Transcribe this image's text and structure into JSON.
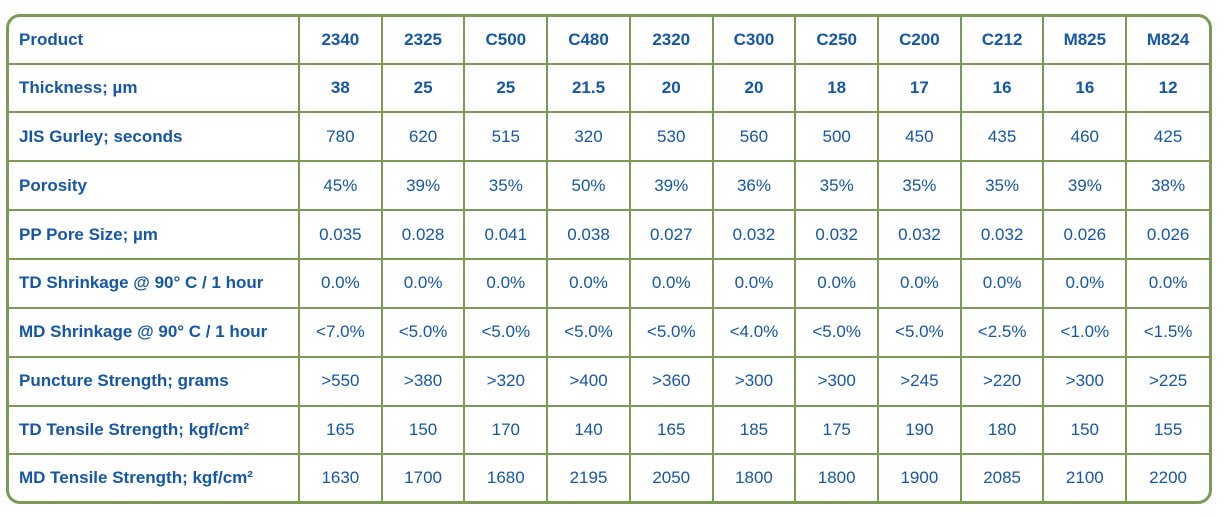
{
  "table": {
    "header": {
      "label": "Product",
      "values": [
        "2340",
        "2325",
        "C500",
        "C480",
        "2320",
        "C300",
        "C250",
        "C200",
        "C212",
        "M825",
        "M824"
      ]
    },
    "rows": [
      {
        "label": "Thickness;  µm",
        "values": [
          "38",
          "25",
          "25",
          "21.5",
          "20",
          "20",
          "18",
          "17",
          "16",
          "16",
          "12"
        ]
      },
      {
        "label": "JIS Gurley;  seconds",
        "values": [
          "780",
          "620",
          "515",
          "320",
          "530",
          "560",
          "500",
          "450",
          "435",
          "460",
          "425"
        ]
      },
      {
        "label": "Porosity",
        "values": [
          "45%",
          "39%",
          "35%",
          "50%",
          "39%",
          "36%",
          "35%",
          "35%",
          "35%",
          "39%",
          "38%"
        ]
      },
      {
        "label": "PP Pore Size;  µm",
        "values": [
          "0.035",
          "0.028",
          "0.041",
          "0.038",
          "0.027",
          "0.032",
          "0.032",
          "0.032",
          "0.032",
          "0.026",
          "0.026"
        ]
      },
      {
        "label": "TD Shrinkage @ 90° C / 1 hour",
        "values": [
          "0.0%",
          "0.0%",
          "0.0%",
          "0.0%",
          "0.0%",
          "0.0%",
          "0.0%",
          "0.0%",
          "0.0%",
          "0.0%",
          "0.0%"
        ]
      },
      {
        "label": "MD Shrinkage @ 90° C / 1 hour",
        "values": [
          "<7.0%",
          "<5.0%",
          "<5.0%",
          "<5.0%",
          "<5.0%",
          "<4.0%",
          "<5.0%",
          "<5.0%",
          "<2.5%",
          "<1.0%",
          "<1.5%"
        ]
      },
      {
        "label": "Puncture Strength;  grams",
        "values": [
          ">550",
          ">380",
          ">320",
          ">400",
          ">360",
          ">300",
          ">300",
          ">245",
          ">220",
          ">300",
          ">225"
        ]
      },
      {
        "label": "TD Tensile Strength;  kgf/cm²",
        "values": [
          "165",
          "150",
          "170",
          "140",
          "165",
          "185",
          "175",
          "190",
          "180",
          "150",
          "155"
        ]
      },
      {
        "label": "MD Tensile Strength;  kgf/cm²",
        "values": [
          "1630",
          "1700",
          "1680",
          "2195",
          "2050",
          "1800",
          "1800",
          "1900",
          "2085",
          "2100",
          "2200"
        ]
      }
    ]
  }
}
